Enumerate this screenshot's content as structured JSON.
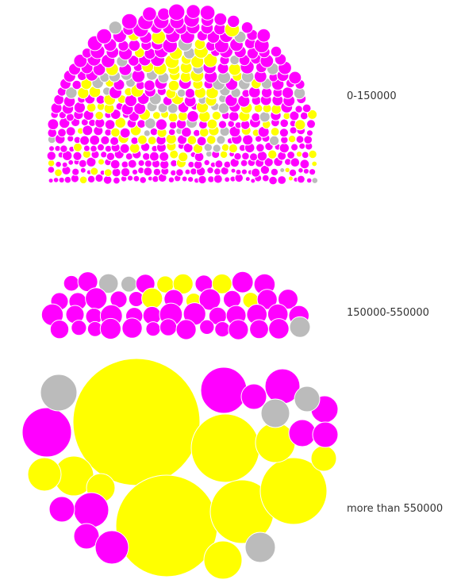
{
  "chart_data": {
    "type": "bubble-cluster",
    "colors": {
      "magenta": "#ff00ff",
      "yellow": "#ffff00",
      "gray": "#bbbbbb"
    },
    "groups": [
      {
        "label": "0-150000"
      },
      {
        "label": "150000-550000"
      },
      {
        "label": "more than 550000"
      }
    ]
  }
}
